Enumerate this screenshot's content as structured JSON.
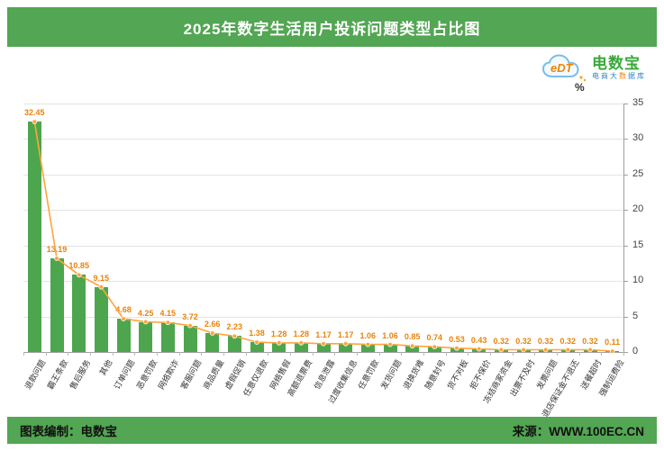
{
  "header": {
    "title": "2025年数字生活用户投诉问题类型占比图"
  },
  "logo": {
    "cloud_text": "eDT",
    "brand": "电数宝",
    "sub1": "电商大",
    "sub2": "数",
    "sub3": "据库"
  },
  "footer": {
    "left": "图表编制：电数宝",
    "right": "来源：WWW.100EC.CN"
  },
  "chart_data": {
    "type": "bar",
    "subtype": "bar+line combo, line mirrors bar values",
    "unit_label": "%",
    "title": "2025年数字生活用户投诉问题类型占比图",
    "categories": [
      "退款问题",
      "霸王条款",
      "售后服务",
      "其他",
      "订单问题",
      "恶意罚款",
      "网络欺诈",
      "客服问题",
      "商品质量",
      "虚假促销",
      "任意仅退款",
      "网络售假",
      "高额退票费",
      "信息泄露",
      "过度收集信息",
      "任意罚款",
      "发货问题",
      "退换货难",
      "随意封号",
      "货不对板",
      "拒不保价",
      "冻结商家资金",
      "出票不及时",
      "发票问题",
      "退店保证金不退还",
      "送餐超时",
      "强制运费险"
    ],
    "values": [
      32.45,
      13.19,
      10.85,
      9.15,
      4.68,
      4.25,
      4.15,
      3.72,
      2.66,
      2.23,
      1.38,
      1.28,
      1.28,
      1.17,
      1.17,
      1.06,
      1.06,
      0.85,
      0.74,
      0.53,
      0.43,
      0.32,
      0.32,
      0.32,
      0.32,
      0.32,
      0.11
    ],
    "y_ticks": [
      0,
      5,
      10,
      15,
      20,
      25,
      30,
      35
    ],
    "ylim": [
      0,
      35
    ],
    "grid": true,
    "legend": "none",
    "bar_color": "#4da64d",
    "line_color": "#ffa43b",
    "label_color": "#e8830c",
    "header_color": "#53a653"
  }
}
